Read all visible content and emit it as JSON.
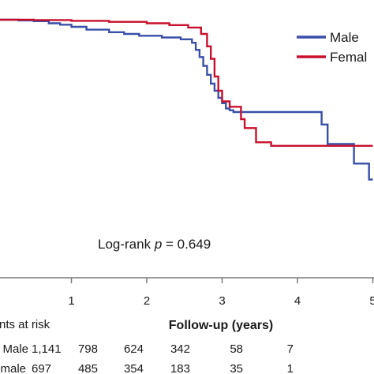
{
  "chart_data": {
    "type": "line",
    "xlabel": "Follow-up (years)",
    "ylabel": "",
    "xlim": [
      0,
      5.1
    ],
    "ylim": [
      0.45,
      1.005
    ],
    "x_ticks": [
      "1",
      "2",
      "3",
      "4",
      "5"
    ],
    "annotation": {
      "prefix": "Log-rank ",
      "italic": "p",
      "suffix": " = 0.649"
    },
    "legend_position": "top-right",
    "series": [
      {
        "name": "Male",
        "color": "#3a4fa8",
        "steps": [
          [
            0,
            1.0
          ],
          [
            0.3,
            0.998
          ],
          [
            0.5,
            0.996
          ],
          [
            0.7,
            0.99
          ],
          [
            0.85,
            0.986
          ],
          [
            1.0,
            0.98
          ],
          [
            1.2,
            0.972
          ],
          [
            1.5,
            0.965
          ],
          [
            1.7,
            0.96
          ],
          [
            1.9,
            0.955
          ],
          [
            2.2,
            0.95
          ],
          [
            2.45,
            0.945
          ],
          [
            2.6,
            0.935
          ],
          [
            2.65,
            0.915
          ],
          [
            2.7,
            0.895
          ],
          [
            2.75,
            0.87
          ],
          [
            2.8,
            0.845
          ],
          [
            2.85,
            0.82
          ],
          [
            2.9,
            0.8
          ],
          [
            2.95,
            0.78
          ],
          [
            3.0,
            0.765
          ],
          [
            3.05,
            0.75
          ],
          [
            3.1,
            0.745
          ],
          [
            3.15,
            0.74
          ],
          [
            3.35,
            0.74
          ],
          [
            4.32,
            0.705
          ],
          [
            4.4,
            0.65
          ],
          [
            4.75,
            0.595
          ],
          [
            4.95,
            0.55
          ],
          [
            5.0,
            0.55
          ]
        ]
      },
      {
        "name": "Female",
        "color": "#c8102e",
        "steps": [
          [
            0,
            1.0
          ],
          [
            0.5,
            0.999
          ],
          [
            1.0,
            0.997
          ],
          [
            1.5,
            0.994
          ],
          [
            2.0,
            0.99
          ],
          [
            2.3,
            0.985
          ],
          [
            2.55,
            0.978
          ],
          [
            2.72,
            0.96
          ],
          [
            2.8,
            0.925
          ],
          [
            2.85,
            0.89
          ],
          [
            2.9,
            0.84
          ],
          [
            2.95,
            0.8
          ],
          [
            3.0,
            0.77
          ],
          [
            3.1,
            0.755
          ],
          [
            3.25,
            0.72
          ],
          [
            3.3,
            0.695
          ],
          [
            3.45,
            0.655
          ],
          [
            3.65,
            0.645
          ],
          [
            3.9,
            0.645
          ],
          [
            4.3,
            0.645
          ],
          [
            4.32,
            0.645
          ],
          [
            5.0,
            0.645
          ]
        ]
      }
    ],
    "risk_table": {
      "title": "nts at risk",
      "rows": [
        {
          "label": "Male",
          "values": [
            "1,141",
            "798",
            "624",
            "342",
            "58",
            "7"
          ]
        },
        {
          "label": "male",
          "values": [
            "697",
            "485",
            "354",
            "183",
            "35",
            "1"
          ]
        }
      ]
    }
  },
  "legend": {
    "male_label": "Male",
    "female_label": "Femal"
  }
}
